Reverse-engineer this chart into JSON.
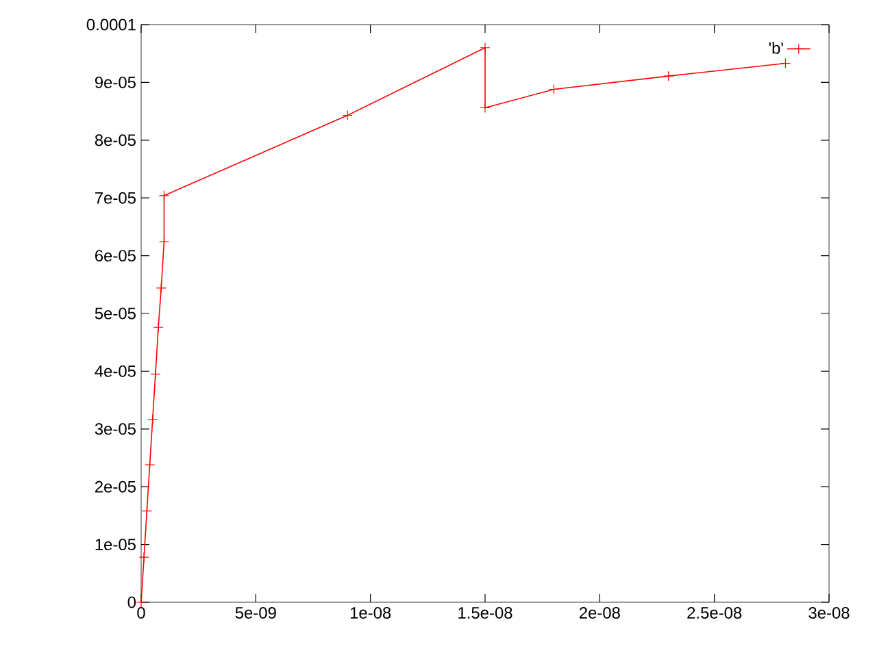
{
  "chart_data": {
    "type": "line",
    "x": [
      0,
      1.25e-10,
      2.5e-10,
      3.75e-10,
      5e-10,
      6.25e-10,
      7.5e-10,
      8.75e-10,
      1e-09,
      1e-09,
      9e-09,
      1.5e-08,
      1.5e-08,
      1.8e-08,
      2.3e-08,
      2.81e-08
    ],
    "series": [
      {
        "name": "'b'",
        "color": "#ff0000",
        "values": [
          0,
          7.8e-06,
          1.58e-05,
          2.38e-05,
          3.16e-05,
          3.95e-05,
          4.76e-05,
          5.44e-05,
          6.24e-05,
          7.04e-05,
          8.43e-05,
          9.6e-05,
          8.56e-05,
          8.88e-05,
          9.11e-05,
          9.33e-05
        ]
      }
    ],
    "xlim": [
      0,
      3e-08
    ],
    "ylim": [
      0,
      0.0001
    ],
    "xticks": [
      {
        "value": 0,
        "label": "0"
      },
      {
        "value": 5e-09,
        "label": "5e-09"
      },
      {
        "value": 1e-08,
        "label": "1e-08"
      },
      {
        "value": 1.5e-08,
        "label": "1.5e-08"
      },
      {
        "value": 2e-08,
        "label": "2e-08"
      },
      {
        "value": 2.5e-08,
        "label": "2.5e-08"
      },
      {
        "value": 3e-08,
        "label": "3e-08"
      }
    ],
    "yticks": [
      {
        "value": 0,
        "label": "0"
      },
      {
        "value": 1e-05,
        "label": "1e-05"
      },
      {
        "value": 2e-05,
        "label": "2e-05"
      },
      {
        "value": 3e-05,
        "label": "3e-05"
      },
      {
        "value": 4e-05,
        "label": "4e-05"
      },
      {
        "value": 5e-05,
        "label": "5e-05"
      },
      {
        "value": 6e-05,
        "label": "6e-05"
      },
      {
        "value": 7e-05,
        "label": "7e-05"
      },
      {
        "value": 8e-05,
        "label": "8e-05"
      },
      {
        "value": 9e-05,
        "label": "9e-05"
      },
      {
        "value": 0.0001,
        "label": "0.0001"
      }
    ],
    "legend": "top right",
    "marker": "cross",
    "line_style": "solid"
  }
}
